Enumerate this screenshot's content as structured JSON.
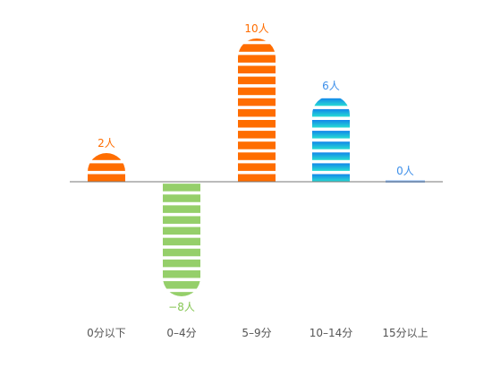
{
  "chart_data": {
    "type": "bar",
    "categories": [
      "0分以下",
      "0–4分",
      "5–9分",
      "10–14分",
      "15分以上"
    ],
    "values": [
      2,
      -8,
      10,
      6,
      0
    ],
    "value_labels": [
      "2人",
      "−8人",
      "10人",
      "6人",
      "0人"
    ],
    "ylim": [
      -10,
      12
    ],
    "grid": false,
    "legend": "none",
    "colors": {
      "orange": "#ff6d00",
      "green": "#95cf6a",
      "blue_top": "#1287ea",
      "cyan_bottom": "#27dcd3",
      "baseline": "#777777",
      "zero_bar": "#7eb2f5",
      "label_orange": "#ff6d00",
      "label_green": "#86c654",
      "label_blue": "#3f90ea",
      "tick_text": "#555555"
    },
    "bar_styles": [
      "orange",
      "green",
      "orange",
      "blue_gradient",
      "zero"
    ]
  }
}
